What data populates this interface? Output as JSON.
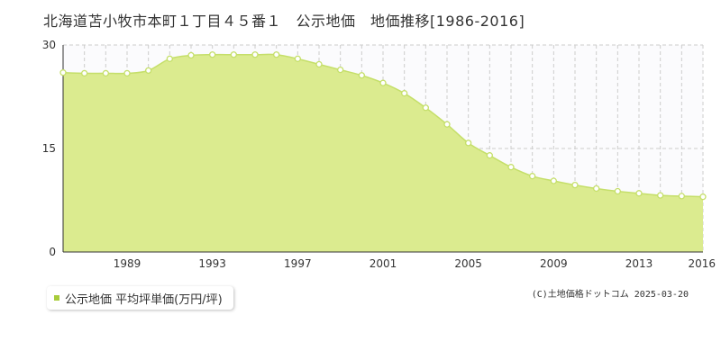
{
  "title": "北海道苫小牧市本町１丁目４５番１　公示地価　地価推移[1986-2016]",
  "legend": {
    "label": "公示地価 平均坪単価(万円/坪)"
  },
  "copyright": "(C)土地価格ドットコム 2025-03-20",
  "colors": {
    "area_fill": "#dbeb8f",
    "line": "#c5df6a",
    "marker_stroke": "#c5df6a",
    "marker_fill": "#ffffff",
    "legend_swatch": "#a8cc3a"
  },
  "chart_data": {
    "type": "area",
    "x": [
      1986,
      1987,
      1988,
      1989,
      1990,
      1991,
      1992,
      1993,
      1994,
      1995,
      1996,
      1997,
      1998,
      1999,
      2000,
      2001,
      2002,
      2003,
      2004,
      2005,
      2006,
      2007,
      2008,
      2009,
      2010,
      2011,
      2012,
      2013,
      2014,
      2015,
      2016
    ],
    "series": [
      {
        "values": [
          26.0,
          25.9,
          25.9,
          25.9,
          26.3,
          28.0,
          28.5,
          28.6,
          28.6,
          28.6,
          28.6,
          28.0,
          27.2,
          26.4,
          25.6,
          24.5,
          23.0,
          20.9,
          18.5,
          15.8,
          14.0,
          12.3,
          11.0,
          10.3,
          9.7,
          9.2,
          8.8,
          8.5,
          8.2,
          8.1,
          8.0
        ]
      }
    ],
    "xlim": [
      1986,
      2016
    ],
    "ylim": [
      0,
      30
    ],
    "y_ticks": [
      0,
      15,
      30
    ],
    "x_tick_labels": [
      1989,
      1993,
      1997,
      2001,
      2005,
      2009,
      2013,
      2016
    ],
    "grid": true,
    "legend_position": "bottom-left"
  }
}
